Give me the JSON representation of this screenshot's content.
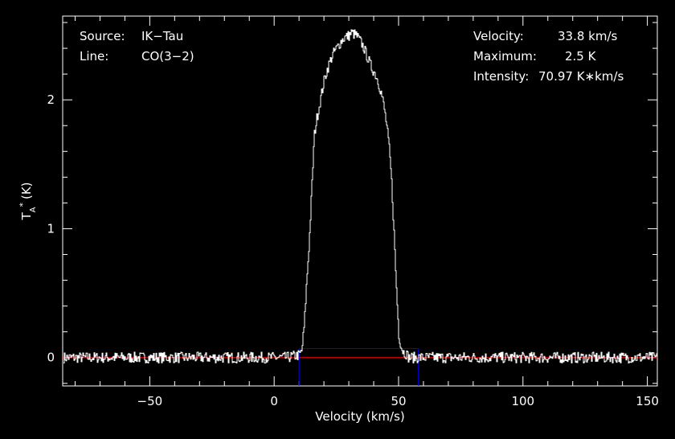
{
  "chart_data": {
    "type": "line",
    "title": "",
    "xlabel": "Velocity (km/s)",
    "ylabel": "T",
    "ylabel_sub": "A",
    "ylabel_sup": "*",
    "ylabel_unit": "(K)",
    "xlim": [
      -85,
      154
    ],
    "ylim": [
      -0.22,
      2.65
    ],
    "xticks": [
      -50,
      0,
      50,
      100,
      150
    ],
    "xtick_labels": [
      "−50",
      "0",
      "50",
      "100",
      "150"
    ],
    "yticks": [
      0,
      1,
      2
    ],
    "ytick_labels": [
      "0",
      "1",
      "2"
    ],
    "grid": false,
    "info_left": [
      {
        "key": "Source:",
        "value": "IK−Tau"
      },
      {
        "key": "Line:",
        "value": "CO(3−2)"
      }
    ],
    "info_right": [
      {
        "key": "Velocity:",
        "value": "33.8 km/s"
      },
      {
        "key": "Maximum:",
        "value": "2.5 K"
      },
      {
        "key": "Intensity:",
        "value": "70.97 K∗km/s"
      }
    ],
    "series": [
      {
        "color": "#ffffff",
        "x": [
          -85,
          -70,
          -50,
          -30,
          -10,
          0,
          5,
          10,
          11,
          12,
          13,
          14,
          15,
          16,
          17,
          18,
          19,
          20,
          21,
          22,
          23,
          24,
          25,
          26,
          27,
          28,
          29,
          30,
          31,
          32,
          33,
          34,
          35,
          36,
          37,
          38,
          39,
          40,
          41,
          42,
          43,
          44,
          45,
          46,
          47,
          48,
          49,
          50,
          51,
          52,
          53,
          54,
          55,
          56,
          57,
          58,
          60,
          70,
          90,
          110,
          130,
          154
        ],
        "y": [
          0,
          0,
          0,
          0,
          0,
          0,
          0,
          0.02,
          0.05,
          0.25,
          0.6,
          0.9,
          1.3,
          1.72,
          1.85,
          1.95,
          2.05,
          2.15,
          2.22,
          2.28,
          2.33,
          2.37,
          2.4,
          2.43,
          2.46,
          2.48,
          2.49,
          2.5,
          2.52,
          2.51,
          2.5,
          2.47,
          2.44,
          2.4,
          2.35,
          2.3,
          2.25,
          2.22,
          2.18,
          2.12,
          2.05,
          1.95,
          1.82,
          1.65,
          1.4,
          1.0,
          0.55,
          0.18,
          0.08,
          0.04,
          0.03,
          0,
          0,
          0,
          0,
          0,
          0,
          0,
          0,
          0,
          0,
          0
        ]
      }
    ],
    "baseline": {
      "color": "#ff0000",
      "y": 0
    },
    "window": {
      "color": "#0000ff",
      "x": [
        10,
        58
      ],
      "y_top": 0.07
    }
  }
}
